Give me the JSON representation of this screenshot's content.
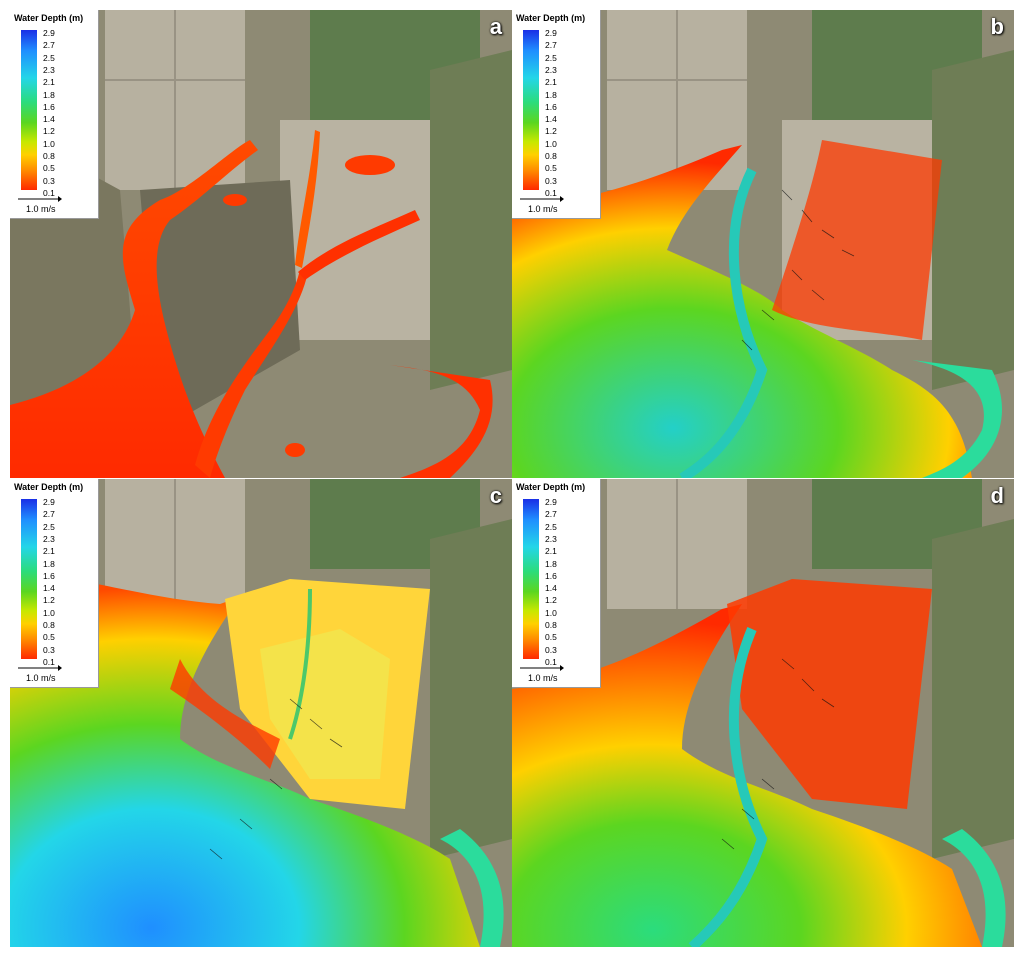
{
  "legend": {
    "title": "Water Depth (m)",
    "ticks": [
      "2.9",
      "2.7",
      "2.5",
      "2.3",
      "2.1",
      "1.8",
      "1.6",
      "1.4",
      "1.2",
      "1.0",
      "0.8",
      "0.5",
      "0.3",
      "0.1"
    ],
    "vector_scale": "1.0 m/s"
  },
  "panels": [
    {
      "letter": "a",
      "water_extent": "channels"
    },
    {
      "letter": "b",
      "water_extent": "partial"
    },
    {
      "letter": "c",
      "water_extent": "full"
    },
    {
      "letter": "d",
      "water_extent": "receding"
    }
  ],
  "colors": {
    "deep": "#1a2fe6",
    "mid": "#2bdc7d",
    "shallow": "#ff2a00",
    "field": "#b9b3a2",
    "farmland": "#5e7c4d",
    "marsh": "#7d7a66"
  }
}
